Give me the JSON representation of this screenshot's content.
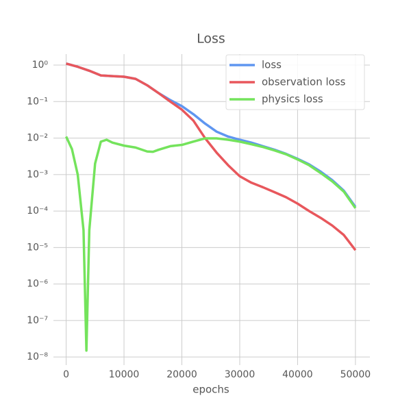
{
  "chart_data": {
    "type": "line",
    "title": "Loss",
    "xlabel": "epochs",
    "yscale": "log",
    "grid": true,
    "legend": "upper right",
    "xlim": [
      -2200,
      52500
    ],
    "xticks": [
      0,
      10000,
      20000,
      30000,
      40000,
      50000
    ],
    "ylim": [
      6e-09,
      2
    ],
    "yticks": [
      {
        "value": 1,
        "label": "10⁰"
      },
      {
        "value": 0.1,
        "label": "10⁻¹"
      },
      {
        "value": 0.01,
        "label": "10⁻²"
      },
      {
        "value": 0.001,
        "label": "10⁻³"
      },
      {
        "value": 0.0001,
        "label": "10⁻⁴"
      },
      {
        "value": 1e-05,
        "label": "10⁻⁵"
      },
      {
        "value": 1e-06,
        "label": "10⁻⁶"
      },
      {
        "value": 1e-07,
        "label": "10⁻⁷"
      },
      {
        "value": 1e-08,
        "label": "10⁻⁸"
      }
    ],
    "series": [
      {
        "name": "loss",
        "color": "#5f96f0",
        "x": [
          0,
          2000,
          4000,
          6000,
          8000,
          10000,
          12000,
          14000,
          16000,
          18000,
          20000,
          22000,
          24000,
          26000,
          28000,
          30000,
          32000,
          34000,
          36000,
          38000,
          40000,
          42000,
          44000,
          46000,
          48000,
          50000
        ],
        "values": [
          1.1,
          0.9,
          0.7,
          0.52,
          0.5,
          0.48,
          0.42,
          0.28,
          0.17,
          0.11,
          0.075,
          0.045,
          0.025,
          0.015,
          0.011,
          0.009,
          0.0075,
          0.006,
          0.0048,
          0.0037,
          0.0027,
          0.0019,
          0.0012,
          0.0007,
          0.00036,
          0.00013
        ]
      },
      {
        "name": "observation loss",
        "color": "#e8575c",
        "x": [
          0,
          2000,
          4000,
          6000,
          8000,
          10000,
          12000,
          14000,
          16000,
          18000,
          20000,
          22000,
          24000,
          26000,
          28000,
          30000,
          32000,
          34000,
          36000,
          38000,
          40000,
          42000,
          44000,
          46000,
          48000,
          50000
        ],
        "values": [
          1.1,
          0.9,
          0.7,
          0.52,
          0.5,
          0.48,
          0.42,
          0.28,
          0.17,
          0.1,
          0.06,
          0.03,
          0.01,
          0.004,
          0.0018,
          0.0009,
          0.0006,
          0.00045,
          0.00033,
          0.00024,
          0.00016,
          0.0001,
          6.5e-05,
          4e-05,
          2.2e-05,
          8.5e-06
        ]
      },
      {
        "name": "physics loss",
        "color": "#74e35c",
        "x": [
          0,
          1000,
          2000,
          3000,
          3500,
          4000,
          5000,
          6000,
          7000,
          8000,
          10000,
          12000,
          14000,
          15000,
          16000,
          18000,
          20000,
          22000,
          24000,
          26000,
          28000,
          30000,
          32000,
          34000,
          36000,
          38000,
          40000,
          42000,
          44000,
          46000,
          48000,
          50000
        ],
        "values": [
          0.011,
          0.005,
          0.001,
          3e-05,
          1.5e-08,
          3e-05,
          0.002,
          0.008,
          0.009,
          0.0075,
          0.0062,
          0.0055,
          0.0043,
          0.0042,
          0.0048,
          0.006,
          0.0065,
          0.008,
          0.0098,
          0.0098,
          0.009,
          0.008,
          0.0068,
          0.0057,
          0.0046,
          0.0036,
          0.0026,
          0.0018,
          0.0011,
          0.00065,
          0.00034,
          0.00012
        ]
      }
    ]
  }
}
